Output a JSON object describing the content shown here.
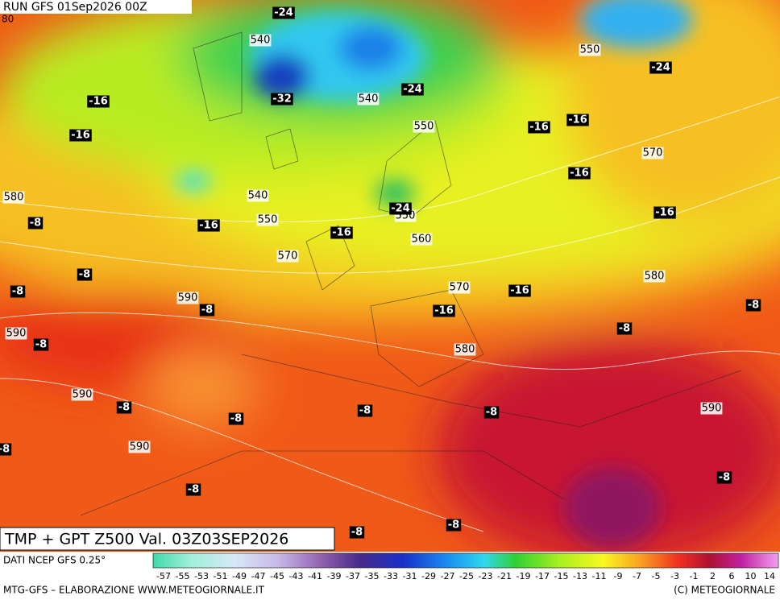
{
  "header": {
    "run": "RUN GFS 01Sep2026 00Z",
    "corner_label": "80"
  },
  "map": {
    "contour_labels": [
      "540",
      "550",
      "540",
      "550",
      "570",
      "540",
      "580",
      "550",
      "550",
      "560",
      "570",
      "570",
      "580",
      "590",
      "590",
      "580",
      "590",
      "590",
      "590"
    ],
    "temperature_labels": [
      "-24",
      "-24",
      "-24",
      "-32",
      "-16",
      "-16",
      "-16",
      "-16",
      "-16",
      "-16",
      "-16",
      "-16",
      "-24",
      "-8",
      "-8",
      "-8",
      "-16",
      "-16",
      "-8",
      "-8",
      "-8",
      "-8",
      "-8",
      "-8",
      "-8",
      "-8",
      "-8",
      "-8",
      "-8",
      "-8",
      "-8"
    ]
  },
  "footer": {
    "product": "TMP + GPT Z500 Val. 03Z03SEP2026",
    "source": "DATI NCEP GFS 0.25°",
    "credit": "MTG-GFS – ELABORAZIONE WWW.METEOGIORNALE.IT",
    "copyright": "(C) METEOGIORNALE",
    "colorbar_labels": [
      "-57",
      "-55",
      "-53",
      "-51",
      "-49",
      "-47",
      "-45",
      "-43",
      "-41",
      "-39",
      "-37",
      "-35",
      "-33",
      "-31",
      "-29",
      "-27",
      "-25",
      "-23",
      "-21",
      "-19",
      "-17",
      "-15",
      "-13",
      "-11",
      "-9",
      "-7",
      "-5",
      "-3",
      "-1",
      "2",
      "6",
      "10",
      "14"
    ]
  }
}
